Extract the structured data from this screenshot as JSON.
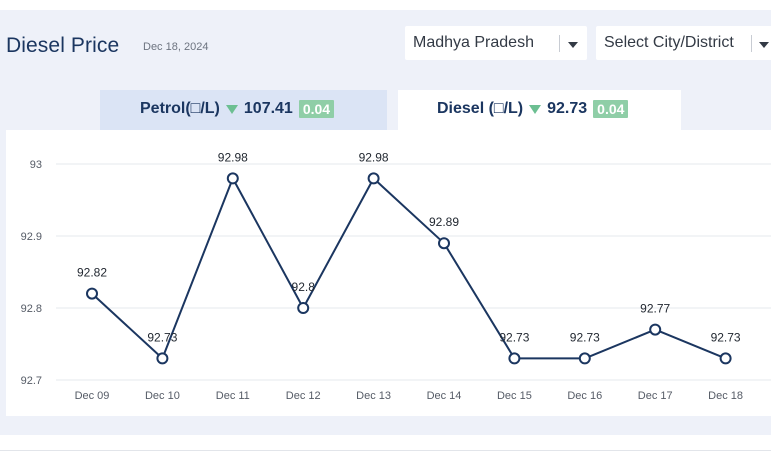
{
  "header": {
    "title": "Diesel Price",
    "date": "Dec 18, 2024",
    "state_select": "Madhya Pradesh",
    "city_select": "Select City/District"
  },
  "tabs": {
    "petrol": {
      "label": "Petrol(□/L)",
      "price": "107.41",
      "change": "0.04"
    },
    "diesel": {
      "label": "Diesel (□/L)",
      "price": "92.73",
      "change": "0.04"
    }
  },
  "colors": {
    "line": "#1b3660",
    "accent_green": "#8fcea7",
    "title": "#1b3660"
  },
  "chart_data": {
    "type": "line",
    "categories": [
      "Dec 09",
      "Dec 10",
      "Dec 11",
      "Dec 12",
      "Dec 13",
      "Dec 14",
      "Dec 15",
      "Dec 16",
      "Dec 17",
      "Dec 18"
    ],
    "values": [
      92.82,
      92.73,
      92.98,
      92.8,
      92.98,
      92.89,
      92.73,
      92.73,
      92.77,
      92.73
    ],
    "labels": [
      "92.82",
      "92.73",
      "92.98",
      "92.8",
      "92.98",
      "92.89",
      "92.73",
      "92.73",
      "92.77",
      "92.73"
    ],
    "yticks": [
      "92.7",
      "92.8",
      "92.9",
      "93"
    ],
    "ylim": [
      92.7,
      93.0
    ],
    "grid": true,
    "title": "",
    "xlabel": "",
    "ylabel": ""
  }
}
